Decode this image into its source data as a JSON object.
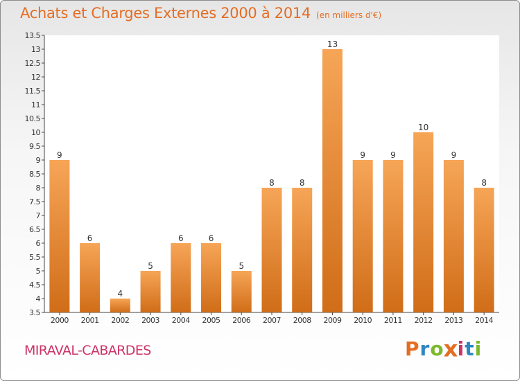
{
  "header": {
    "title": "Achats et Charges Externes 2000 à 2014",
    "unit": "(en milliers d'€)"
  },
  "footer": {
    "place": "MIRAVAL-CABARDES",
    "logo": {
      "letters": [
        "P",
        "r",
        "o",
        "x",
        "i",
        "t",
        "i"
      ],
      "colors": [
        "#e46d22",
        "#2e86c1",
        "#7cb82f",
        "#e46d22",
        "#cc3366",
        "#2e86c1",
        "#7cb82f"
      ]
    }
  },
  "colors": {
    "bar_light": "#f6a557",
    "bar_dark": "#d06d18",
    "axis": "#444444",
    "grid": "#cccccc",
    "text": "#333333",
    "title": "#e46d22"
  },
  "chart_data": {
    "type": "bar",
    "title": "Achats et Charges Externes 2000 à 2014",
    "subtitle": "(en milliers d'€)",
    "categories": [
      "2000",
      "2001",
      "2002",
      "2003",
      "2004",
      "2005",
      "2006",
      "2007",
      "2008",
      "2009",
      "2010",
      "2011",
      "2012",
      "2013",
      "2014"
    ],
    "values": [
      9,
      6,
      4,
      5,
      6,
      6,
      5,
      8,
      8,
      13,
      9,
      9,
      10,
      9,
      8
    ],
    "data_labels": [
      "9",
      "6",
      "4",
      "5",
      "6",
      "6",
      "5",
      "8",
      "8",
      "13",
      "9",
      "9",
      "10",
      "9",
      "8"
    ],
    "yticks": [
      "3.5",
      "4",
      "4.5",
      "5",
      "5.5",
      "6",
      "6.5",
      "7",
      "7.5",
      "8",
      "8.5",
      "9",
      "9.5",
      "10",
      "10.5",
      "11",
      "11.5",
      "12",
      "12.5",
      "13",
      "13.5"
    ],
    "ylim": [
      3.5,
      13.5
    ],
    "xlabel": "",
    "ylabel": "",
    "grid": false,
    "legend": "none"
  }
}
